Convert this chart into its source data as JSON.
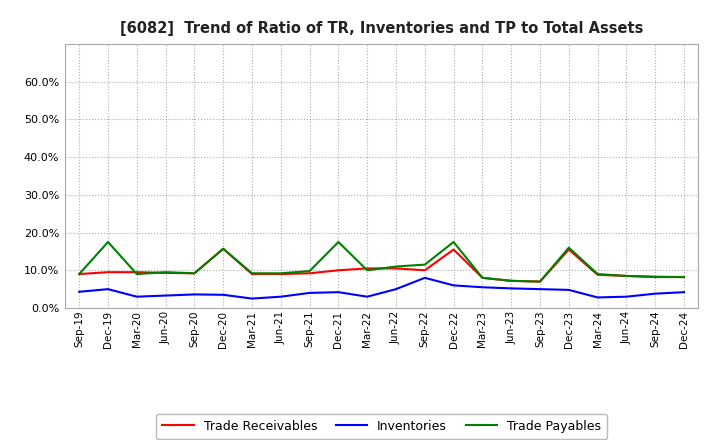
{
  "title": "[6082]  Trend of Ratio of TR, Inventories and TP to Total Assets",
  "x_labels": [
    "Sep-19",
    "Dec-19",
    "Mar-20",
    "Jun-20",
    "Sep-20",
    "Dec-20",
    "Mar-21",
    "Jun-21",
    "Sep-21",
    "Dec-21",
    "Mar-22",
    "Jun-22",
    "Sep-22",
    "Dec-22",
    "Mar-23",
    "Jun-23",
    "Sep-23",
    "Dec-23",
    "Mar-24",
    "Jun-24",
    "Sep-24",
    "Dec-24"
  ],
  "trade_receivables": [
    0.09,
    0.095,
    0.095,
    0.093,
    0.092,
    0.157,
    0.09,
    0.09,
    0.092,
    0.1,
    0.105,
    0.105,
    0.1,
    0.155,
    0.08,
    0.072,
    0.07,
    0.155,
    0.088,
    0.085,
    0.082,
    0.082
  ],
  "inventories": [
    0.043,
    0.05,
    0.03,
    0.033,
    0.036,
    0.035,
    0.025,
    0.03,
    0.04,
    0.042,
    0.03,
    0.05,
    0.08,
    0.06,
    0.055,
    0.052,
    0.05,
    0.048,
    0.028,
    0.03,
    0.038,
    0.042
  ],
  "trade_payables": [
    0.09,
    0.175,
    0.09,
    0.095,
    0.092,
    0.157,
    0.092,
    0.092,
    0.098,
    0.175,
    0.1,
    0.11,
    0.115,
    0.175,
    0.08,
    0.072,
    0.07,
    0.16,
    0.09,
    0.085,
    0.083,
    0.082
  ],
  "tr_color": "#ff0000",
  "inv_color": "#0000ff",
  "tp_color": "#008000",
  "ylim": [
    0.0,
    0.7
  ],
  "yticks": [
    0.0,
    0.1,
    0.2,
    0.3,
    0.4,
    0.5,
    0.6
  ],
  "background_color": "#ffffff",
  "plot_bg_color": "#ffffff",
  "grid_color": "#999999",
  "legend_labels": [
    "Trade Receivables",
    "Inventories",
    "Trade Payables"
  ]
}
